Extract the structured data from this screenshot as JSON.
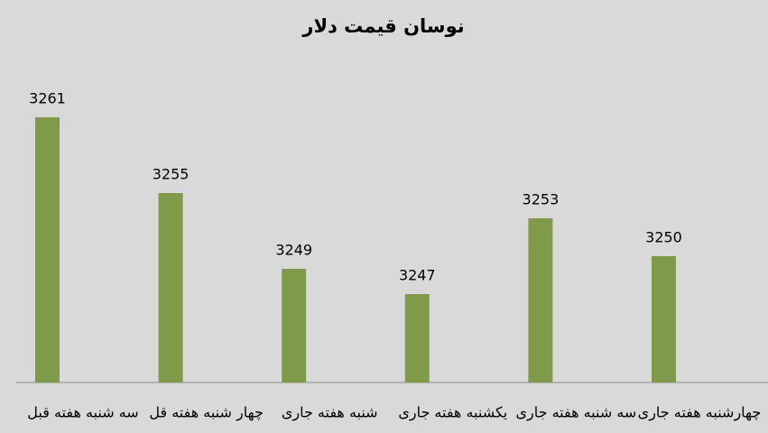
{
  "chart_data": {
    "type": "bar",
    "title": "نوسان قیمت دلار",
    "categories": [
      "سه شنبه هفته قبل",
      "چهار شنبه هفته قل",
      "شنبه هفته جاری",
      "یکشنبه هفته جاری",
      "سه شنبه هفته جاری",
      "چهارشنبه هفته جاری"
    ],
    "values": [
      3261,
      3255,
      3249,
      3247,
      3253,
      3250
    ],
    "color": "#7f9b4a",
    "ylim": [
      3240,
      3265
    ]
  }
}
